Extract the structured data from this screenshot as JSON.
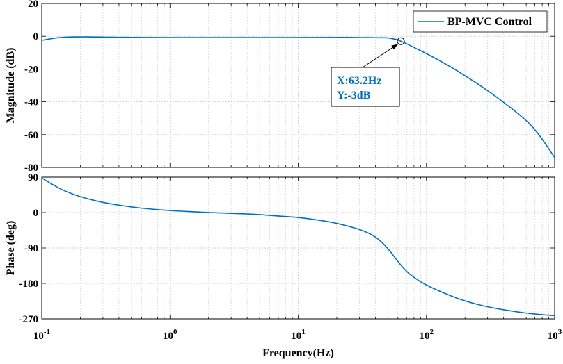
{
  "chart_data": [
    {
      "type": "line",
      "panel": "magnitude",
      "ylabel": "Magnitude (dB)",
      "xscale": "log",
      "xlim": [
        0.1,
        1000
      ],
      "ylim": [
        -80,
        20
      ],
      "yticks": [
        20,
        0,
        -20,
        -40,
        -60,
        -80
      ],
      "grid": true,
      "legend_position": "top-right",
      "series": [
        {
          "name": "BP-MVC Control",
          "color": "#0072BD",
          "x": [
            0.1,
            0.12,
            0.15,
            0.2,
            0.3,
            0.5,
            1,
            2,
            5,
            10,
            20,
            30,
            40,
            50,
            55,
            60,
            63.2,
            70,
            80,
            100,
            150,
            200,
            300,
            500,
            700,
            1000
          ],
          "y": [
            -2.5,
            -1.3,
            -0.5,
            -0.3,
            -0.5,
            -0.7,
            -0.8,
            -0.8,
            -0.8,
            -0.8,
            -0.7,
            -0.7,
            -0.9,
            -0.9,
            -1.5,
            -2.2,
            -3,
            -4.5,
            -6.8,
            -10.5,
            -18,
            -24,
            -33,
            -46,
            -56,
            -74
          ]
        }
      ],
      "annotation": {
        "x": 63.2,
        "y": -3,
        "lines": [
          "X:63.2Hz",
          "Y:-3dB"
        ]
      }
    },
    {
      "type": "line",
      "panel": "phase",
      "xlabel": "Frequency(Hz)",
      "ylabel": "Phase (deg)",
      "xscale": "log",
      "xlim": [
        0.1,
        1000
      ],
      "ylim": [
        -270,
        90
      ],
      "yticks": [
        90,
        0,
        -90,
        -180,
        -270
      ],
      "xticks": [
        {
          "base": "10",
          "exp": "-1"
        },
        {
          "base": "10",
          "exp": "0"
        },
        {
          "base": "10",
          "exp": "1"
        },
        {
          "base": "10",
          "exp": "2"
        },
        {
          "base": "10",
          "exp": "3"
        }
      ],
      "grid": true,
      "series": [
        {
          "name": "BP-MVC Control",
          "color": "#0072BD",
          "x": [
            0.1,
            0.12,
            0.15,
            0.2,
            0.3,
            0.5,
            0.7,
            1,
            2,
            3,
            5,
            7,
            10,
            15,
            20,
            30,
            40,
            50,
            60,
            70,
            80,
            100,
            150,
            200,
            300,
            500,
            700,
            1000
          ],
          "y": [
            88,
            72,
            55,
            40,
            25,
            14,
            9,
            5,
            0,
            -2,
            -5,
            -9,
            -12,
            -20,
            -27,
            -42,
            -60,
            -90,
            -125,
            -150,
            -165,
            -185,
            -210,
            -225,
            -240,
            -252,
            -258,
            -262
          ]
        }
      ]
    }
  ]
}
